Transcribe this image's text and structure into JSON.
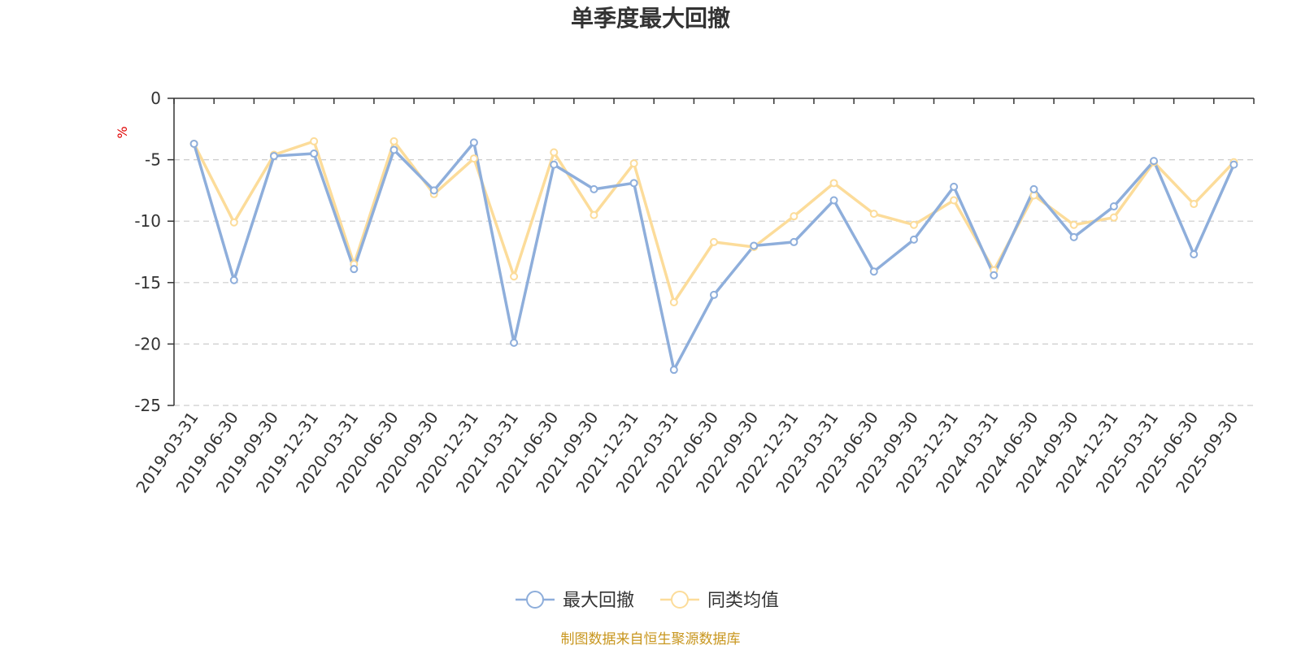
{
  "chart_data": {
    "type": "line",
    "title": "单季度最大回撤",
    "ylabel": "%",
    "xlabel": "",
    "ylim": [
      -25,
      0
    ],
    "yticks": [
      0,
      -5,
      -10,
      -15,
      -20,
      -25
    ],
    "grid": true,
    "legend_position": "bottom-center",
    "categories": [
      "2019-03-31",
      "2019-06-30",
      "2019-09-30",
      "2019-12-31",
      "2020-03-31",
      "2020-06-30",
      "2020-09-30",
      "2020-12-31",
      "2021-03-31",
      "2021-06-30",
      "2021-09-30",
      "2021-12-31",
      "2022-03-31",
      "2022-06-30",
      "2022-09-30",
      "2022-12-31",
      "2023-03-31",
      "2023-06-30",
      "2023-09-30",
      "2023-12-31",
      "2024-03-31",
      "2024-06-30",
      "2024-09-30",
      "2024-12-31",
      "2025-03-31",
      "2025-06-30",
      "2025-09-30"
    ],
    "series": [
      {
        "name": "最大回撤",
        "color": "#8eaedb",
        "values": [
          -3.7,
          -14.8,
          -4.7,
          -4.5,
          -13.9,
          -4.2,
          -7.5,
          -3.6,
          -19.9,
          -5.4,
          -7.4,
          -6.9,
          -22.1,
          -16.0,
          -12.0,
          -11.7,
          -8.3,
          -14.1,
          -11.5,
          -7.2,
          -14.4,
          -7.4,
          -11.3,
          -8.8,
          -5.1,
          -12.7,
          -5.4
        ]
      },
      {
        "name": "同类均值",
        "color": "#fcdc9a",
        "values": [
          -3.7,
          -10.1,
          -4.6,
          -3.5,
          -13.5,
          -3.5,
          -7.8,
          -4.9,
          -14.5,
          -4.4,
          -9.5,
          -5.3,
          -16.6,
          -11.7,
          -12.1,
          -9.6,
          -6.9,
          -9.4,
          -10.3,
          -8.3,
          -14.0,
          -7.9,
          -10.3,
          -9.7,
          -5.2,
          -8.6,
          -5.2
        ]
      }
    ]
  },
  "footer": {
    "source": "制图数据来自恒生聚源数据库"
  },
  "colors": {
    "axis": "#333333",
    "grid": "#cccccc",
    "unit": "#e00000",
    "source": "#c8961e"
  }
}
